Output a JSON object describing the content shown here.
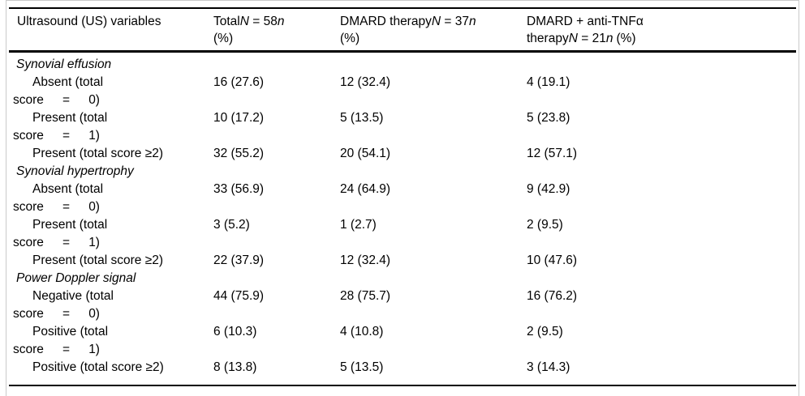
{
  "header": {
    "col1": "Ultrasound (US) variables",
    "col2": {
      "pre": "Total",
      "sym": "N",
      "eq": "=",
      "num": "58",
      "unit": "n",
      "pct": "(%)"
    },
    "col3": {
      "pre": "DMARD therapy",
      "sym": "N",
      "eq": "=",
      "num": "37",
      "unit": "n",
      "pct": "(%)"
    },
    "col4": {
      "w1": "DMARD",
      "plus": "+",
      "w2": "anti-TNFα",
      "pre": "therapy",
      "sym": "N",
      "eq": "=",
      "num": "21",
      "unit": "n",
      "pct": "(%)"
    }
  },
  "body": {
    "sections": [
      {
        "title": "Synovial effusion",
        "rows": [
          {
            "label1": "Absent (total",
            "j": [
              "score",
              "=",
              "0)"
            ],
            "v": [
              "16 (27.6)",
              "12 (32.4)",
              "4 (19.1)"
            ]
          },
          {
            "label1": "Present (total",
            "j": [
              "score",
              "=",
              "1)"
            ],
            "v": [
              "10 (17.2)",
              "5 (13.5)",
              "5 (23.8)"
            ]
          },
          {
            "label1": "Present (total score ≥2)",
            "v": [
              "32 (55.2)",
              "20 (54.1)",
              "12 (57.1)"
            ]
          }
        ]
      },
      {
        "title": "Synovial hypertrophy",
        "rows": [
          {
            "label1": "Absent (total",
            "j": [
              "score",
              "=",
              "0)"
            ],
            "v": [
              "33 (56.9)",
              "24 (64.9)",
              "9 (42.9)"
            ]
          },
          {
            "label1": "Present (total",
            "j": [
              "score",
              "=",
              "1)"
            ],
            "v": [
              "3 (5.2)",
              "1 (2.7)",
              "2 (9.5)"
            ]
          },
          {
            "label1": "Present (total score ≥2)",
            "v": [
              "22 (37.9)",
              "12 (32.4)",
              "10 (47.6)"
            ]
          }
        ]
      },
      {
        "title": "Power Doppler signal",
        "rows": [
          {
            "label1": "Negative (total",
            "j": [
              "score",
              "=",
              "0)"
            ],
            "v": [
              "44 (75.9)",
              "28 (75.7)",
              "16 (76.2)"
            ]
          },
          {
            "label1": "Positive (total",
            "j": [
              "score",
              "=",
              "1)"
            ],
            "v": [
              "6 (10.3)",
              "4 (10.8)",
              "2 (9.5)"
            ]
          },
          {
            "label1": "Positive (total score ≥2)",
            "v": [
              "8 (13.8)",
              "5 (13.5)",
              "3 (14.3)"
            ]
          }
        ]
      }
    ]
  }
}
